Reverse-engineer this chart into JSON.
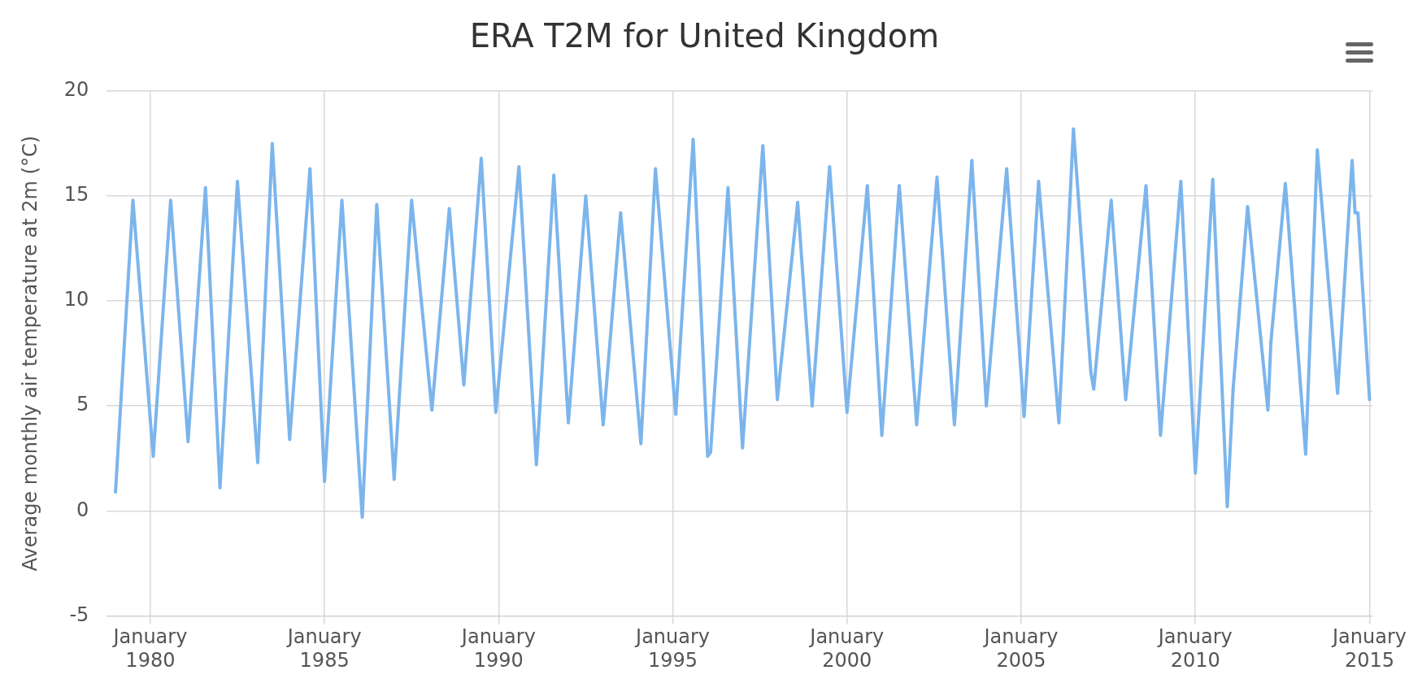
{
  "chart_data": {
    "type": "line",
    "title": "ERA T2M for United Kingdom",
    "ylabel": "Average monthly air temperature at 2m (°C)",
    "x": [
      "1979-01",
      "1979-07",
      "1980-02",
      "1980-08",
      "1981-02",
      "1981-08",
      "1982-01",
      "1982-07",
      "1983-02",
      "1983-07",
      "1984-01",
      "1984-08",
      "1985-01",
      "1985-07",
      "1986-02",
      "1986-07",
      "1987-01",
      "1987-07",
      "1988-02",
      "1988-08",
      "1989-01",
      "1989-07",
      "1989-12",
      "1990-02",
      "1990-08",
      "1991-02",
      "1991-08",
      "1992-01",
      "1992-07",
      "1993-01",
      "1993-07",
      "1994-02",
      "1994-07",
      "1995-02",
      "1995-08",
      "1996-01",
      "1996-02",
      "1996-08",
      "1997-01",
      "1997-08",
      "1998-01",
      "1998-08",
      "1999-01",
      "1999-07",
      "2000-01",
      "2000-08",
      "2001-01",
      "2001-07",
      "2002-01",
      "2002-08",
      "2003-02",
      "2003-08",
      "2004-01",
      "2004-08",
      "2005-02",
      "2005-07",
      "2006-02",
      "2006-07",
      "2007-01",
      "2007-02",
      "2007-08",
      "2008-01",
      "2008-08",
      "2009-01",
      "2009-08",
      "2010-01",
      "2010-07",
      "2010-12",
      "2011-02",
      "2011-07",
      "2012-02",
      "2012-03",
      "2012-08",
      "2013-03",
      "2013-07",
      "2014-02",
      "2014-07",
      "2014-08",
      "2014-09",
      "2015-01"
    ],
    "series": [
      {
        "color": "#7cb5ec",
        "values": [
          0.9,
          14.8,
          2.6,
          14.8,
          3.3,
          15.4,
          1.1,
          15.7,
          2.3,
          17.5,
          3.4,
          16.3,
          1.4,
          14.8,
          -0.3,
          14.6,
          1.5,
          14.8,
          4.8,
          14.4,
          6.0,
          16.8,
          4.7,
          7.6,
          16.4,
          2.2,
          16.0,
          4.2,
          15.0,
          4.1,
          14.2,
          3.2,
          16.3,
          4.6,
          17.7,
          2.6,
          2.8,
          15.4,
          3.0,
          17.4,
          5.3,
          14.7,
          5.0,
          16.4,
          4.7,
          15.5,
          3.6,
          15.5,
          4.1,
          15.9,
          4.1,
          16.7,
          5.0,
          16.3,
          4.5,
          15.7,
          4.2,
          18.2,
          6.6,
          5.8,
          14.8,
          5.3,
          15.5,
          3.6,
          15.7,
          1.8,
          15.8,
          0.2,
          5.8,
          14.5,
          4.8,
          8.0,
          15.6,
          2.7,
          17.2,
          5.6,
          16.7,
          14.2,
          14.2,
          5.3
        ]
      }
    ],
    "xlim": [
      "1978-10",
      "2015-02"
    ],
    "xticks": [
      {
        "value": "1980-01",
        "label": "January 1980"
      },
      {
        "value": "1985-01",
        "label": "January 1985"
      },
      {
        "value": "1990-01",
        "label": "January 1990"
      },
      {
        "value": "1995-01",
        "label": "January 1995"
      },
      {
        "value": "2000-01",
        "label": "January 2000"
      },
      {
        "value": "2005-01",
        "label": "January 2005"
      },
      {
        "value": "2010-01",
        "label": "January 2010"
      },
      {
        "value": "2015-01",
        "label": "January 2015"
      }
    ],
    "ylim": [
      -5,
      20
    ],
    "yticks": [
      -5,
      0,
      5,
      10,
      15,
      20
    ],
    "grid": true,
    "legend": false,
    "marker": "none",
    "line_style": "solid"
  }
}
